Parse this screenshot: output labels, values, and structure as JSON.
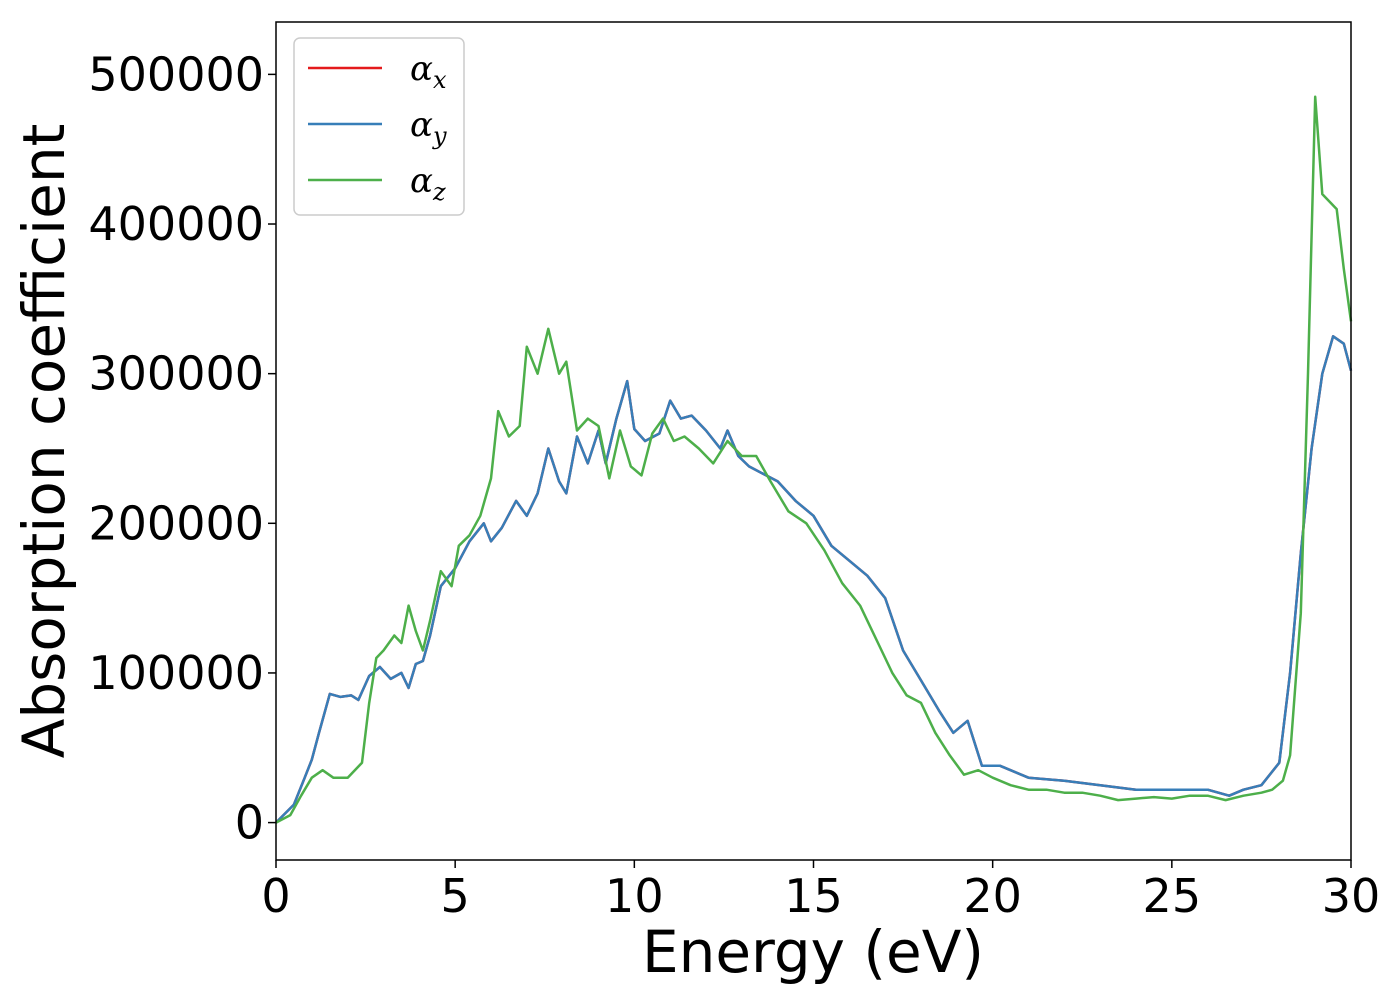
{
  "chart_data": {
    "type": "line",
    "title": "",
    "xlabel": "Energy (eV)",
    "ylabel": "Absorption coefficient",
    "xlim": [
      0,
      30
    ],
    "ylim": [
      -25000,
      535000
    ],
    "xticks": [
      0,
      5,
      10,
      15,
      20,
      25,
      30
    ],
    "yticks": [
      0,
      100000,
      200000,
      300000,
      400000,
      500000
    ],
    "grid": false,
    "legend_position": "top-left",
    "series": [
      {
        "name": "α_x",
        "label_base": "α",
        "label_sub": "x",
        "color": "#e41a1c",
        "x": [
          0,
          0.5,
          0.8,
          1.0,
          1.2,
          1.5,
          1.8,
          2.1,
          2.3,
          2.6,
          2.9,
          3.2,
          3.5,
          3.7,
          3.9,
          4.1,
          4.3,
          4.6,
          5.0,
          5.4,
          5.8,
          6.0,
          6.3,
          6.7,
          7.0,
          7.3,
          7.6,
          7.9,
          8.1,
          8.4,
          8.7,
          9.0,
          9.2,
          9.5,
          9.8,
          10.0,
          10.3,
          10.7,
          11.0,
          11.3,
          11.6,
          12.0,
          12.4,
          12.6,
          12.9,
          13.2,
          13.6,
          14.0,
          14.5,
          15.0,
          15.5,
          16.0,
          16.5,
          17.0,
          17.5,
          18.0,
          18.5,
          18.9,
          19.3,
          19.7,
          20.2,
          21.0,
          22.0,
          23.0,
          24.0,
          25.0,
          26.0,
          26.6,
          27.0,
          27.5,
          28.0,
          28.3,
          28.6,
          28.9,
          29.2,
          29.5,
          29.8,
          30.0
        ],
        "y": [
          0,
          12000,
          30000,
          42000,
          60000,
          86000,
          84000,
          85000,
          82000,
          98000,
          104000,
          96000,
          100000,
          90000,
          106000,
          108000,
          125000,
          158000,
          170000,
          188000,
          200000,
          188000,
          197000,
          215000,
          205000,
          220000,
          250000,
          228000,
          220000,
          258000,
          240000,
          262000,
          240000,
          270000,
          295000,
          263000,
          255000,
          260000,
          282000,
          270000,
          272000,
          262000,
          250000,
          262000,
          245000,
          238000,
          233000,
          228000,
          215000,
          205000,
          185000,
          175000,
          165000,
          150000,
          115000,
          95000,
          75000,
          60000,
          68000,
          38000,
          38000,
          30000,
          28000,
          25000,
          22000,
          22000,
          22000,
          18000,
          22000,
          25000,
          40000,
          100000,
          180000,
          250000,
          300000,
          325000,
          320000,
          302000
        ]
      },
      {
        "name": "α_y",
        "label_base": "α",
        "label_sub": "y",
        "color": "#377eb8",
        "x": [
          0,
          0.5,
          0.8,
          1.0,
          1.2,
          1.5,
          1.8,
          2.1,
          2.3,
          2.6,
          2.9,
          3.2,
          3.5,
          3.7,
          3.9,
          4.1,
          4.3,
          4.6,
          5.0,
          5.4,
          5.8,
          6.0,
          6.3,
          6.7,
          7.0,
          7.3,
          7.6,
          7.9,
          8.1,
          8.4,
          8.7,
          9.0,
          9.2,
          9.5,
          9.8,
          10.0,
          10.3,
          10.7,
          11.0,
          11.3,
          11.6,
          12.0,
          12.4,
          12.6,
          12.9,
          13.2,
          13.6,
          14.0,
          14.5,
          15.0,
          15.5,
          16.0,
          16.5,
          17.0,
          17.5,
          18.0,
          18.5,
          18.9,
          19.3,
          19.7,
          20.2,
          21.0,
          22.0,
          23.0,
          24.0,
          25.0,
          26.0,
          26.6,
          27.0,
          27.5,
          28.0,
          28.3,
          28.6,
          28.9,
          29.2,
          29.5,
          29.8,
          30.0
        ],
        "y": [
          0,
          12000,
          30000,
          42000,
          60000,
          86000,
          84000,
          85000,
          82000,
          98000,
          104000,
          96000,
          100000,
          90000,
          106000,
          108000,
          125000,
          158000,
          170000,
          188000,
          200000,
          188000,
          197000,
          215000,
          205000,
          220000,
          250000,
          228000,
          220000,
          258000,
          240000,
          262000,
          240000,
          270000,
          295000,
          263000,
          255000,
          260000,
          282000,
          270000,
          272000,
          262000,
          250000,
          262000,
          245000,
          238000,
          233000,
          228000,
          215000,
          205000,
          185000,
          175000,
          165000,
          150000,
          115000,
          95000,
          75000,
          60000,
          68000,
          38000,
          38000,
          30000,
          28000,
          25000,
          22000,
          22000,
          22000,
          18000,
          22000,
          25000,
          40000,
          100000,
          180000,
          250000,
          300000,
          325000,
          320000,
          302000
        ]
      },
      {
        "name": "α_z",
        "label_base": "α",
        "label_sub": "z",
        "color": "#4daf4a",
        "x": [
          0,
          0.4,
          0.7,
          1.0,
          1.3,
          1.6,
          2.0,
          2.4,
          2.6,
          2.8,
          3.0,
          3.3,
          3.5,
          3.7,
          3.9,
          4.1,
          4.3,
          4.6,
          4.9,
          5.1,
          5.4,
          5.7,
          6.0,
          6.2,
          6.5,
          6.8,
          7.0,
          7.3,
          7.6,
          7.9,
          8.1,
          8.4,
          8.7,
          9.0,
          9.3,
          9.6,
          9.9,
          10.2,
          10.5,
          10.8,
          11.1,
          11.4,
          11.8,
          12.2,
          12.6,
          13.0,
          13.4,
          13.8,
          14.3,
          14.8,
          15.3,
          15.8,
          16.3,
          16.8,
          17.2,
          17.6,
          18.0,
          18.4,
          18.8,
          19.2,
          19.6,
          20.0,
          20.5,
          21.0,
          21.5,
          22.0,
          22.5,
          23.0,
          23.5,
          24.0,
          24.5,
          25.0,
          25.5,
          26.0,
          26.5,
          27.0,
          27.5,
          27.8,
          28.1,
          28.3,
          28.6,
          28.8,
          29.0,
          29.2,
          29.4,
          29.6,
          29.8,
          30.0
        ],
        "y": [
          0,
          5000,
          18000,
          30000,
          35000,
          30000,
          30000,
          40000,
          80000,
          110000,
          115000,
          125000,
          120000,
          145000,
          128000,
          115000,
          135000,
          168000,
          158000,
          185000,
          192000,
          205000,
          230000,
          275000,
          258000,
          265000,
          318000,
          300000,
          330000,
          300000,
          308000,
          262000,
          270000,
          265000,
          230000,
          262000,
          238000,
          232000,
          260000,
          270000,
          255000,
          258000,
          250000,
          240000,
          255000,
          245000,
          245000,
          228000,
          208000,
          200000,
          182000,
          160000,
          145000,
          120000,
          100000,
          85000,
          80000,
          60000,
          45000,
          32000,
          35000,
          30000,
          25000,
          22000,
          22000,
          20000,
          20000,
          18000,
          15000,
          16000,
          17000,
          16000,
          18000,
          18000,
          15000,
          18000,
          20000,
          22000,
          28000,
          45000,
          140000,
          300000,
          485000,
          420000,
          415000,
          410000,
          370000,
          335000
        ]
      }
    ]
  }
}
